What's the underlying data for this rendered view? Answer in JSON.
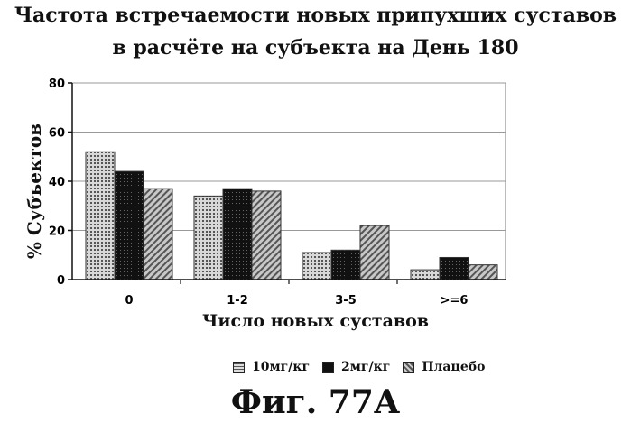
{
  "chart_data": {
    "type": "bar",
    "title_lines": [
      "Частота встречаемости новых припухших суставов",
      "в расчёте на субъекта на День 180"
    ],
    "xlabel": "Число новых суставов",
    "ylabel": "% Субъектов",
    "categories": [
      "0",
      "1-2",
      "3-5",
      ">=6"
    ],
    "ylim": [
      0,
      80
    ],
    "yticks": [
      "0",
      "20",
      "40",
      "60",
      "80"
    ],
    "grid": true,
    "legend_position": "bottom",
    "series": [
      {
        "name": "10мг/кг",
        "values": [
          52,
          34,
          11,
          4
        ],
        "color": "#bdbdbd",
        "pattern": "dots"
      },
      {
        "name": "2мг/кг",
        "values": [
          44,
          37,
          12,
          9
        ],
        "color": "#1a1a1a",
        "pattern": "dark"
      },
      {
        "name": "Плацебо",
        "values": [
          37,
          36,
          22,
          6
        ],
        "color": "#9a9a9a",
        "pattern": "hatch"
      }
    ]
  },
  "figure_label": "Фиг. 77А"
}
